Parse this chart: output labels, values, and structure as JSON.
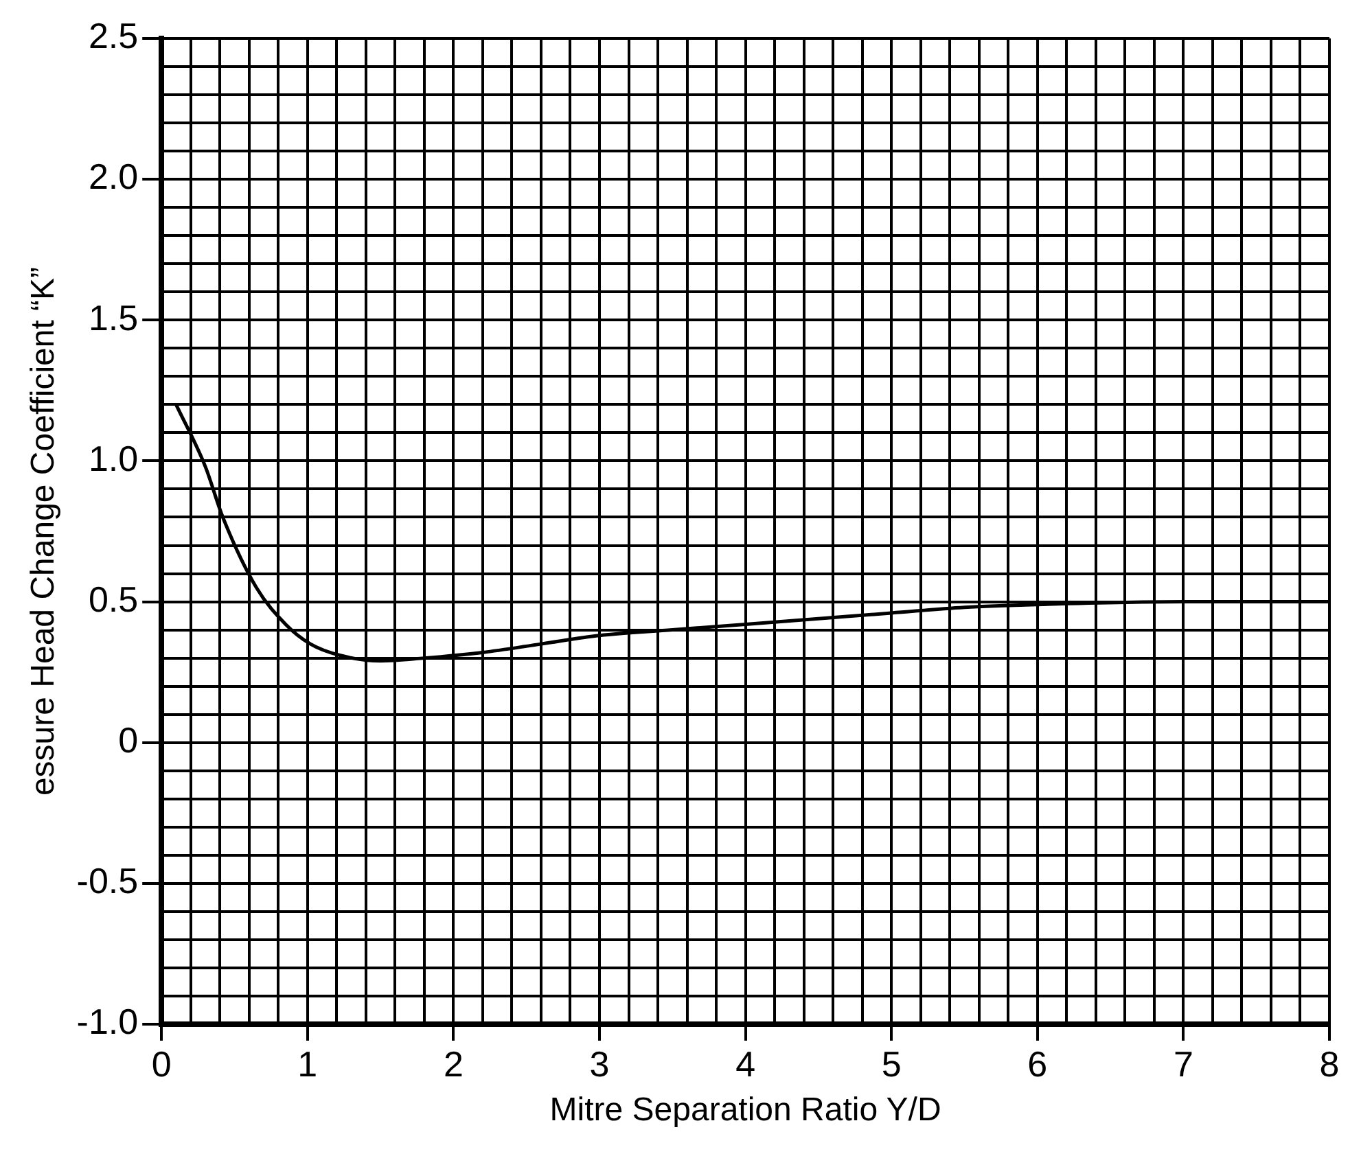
{
  "chart_data": {
    "type": "line",
    "xlabel": "Mitre Separation Ratio Y/D",
    "ylabel": "essure Head Change Coefficient “K”",
    "x": [
      0.1,
      0.3,
      0.42,
      0.65,
      0.85,
      1.02,
      1.22,
      1.5,
      1.8,
      2.2,
      2.6,
      3,
      3.5,
      4,
      4.5,
      5,
      5.5,
      6,
      7,
      8
    ],
    "series": [
      {
        "color": "#000000",
        "values": [
          1.2,
          0.98,
          0.8,
          0.55,
          0.42,
          0.35,
          0.31,
          0.29,
          0.3,
          0.32,
          0.35,
          0.38,
          0.4,
          0.42,
          0.44,
          0.46,
          0.48,
          0.49,
          0.5,
          0.5
        ]
      }
    ],
    "xlim": [
      0,
      8
    ],
    "ylim": [
      -1,
      2.5
    ],
    "xticks": [
      0,
      {
        "value": 0.2,
        "label": null
      },
      {
        "value": 0.4,
        "label": null
      },
      {
        "value": 0.6,
        "label": null
      },
      {
        "value": 0.8,
        "label": null
      },
      1,
      {
        "value": 1.2,
        "label": null
      },
      {
        "value": 1.4,
        "label": null
      },
      {
        "value": 1.6,
        "label": null
      },
      {
        "value": 1.8,
        "label": null
      },
      2,
      {
        "value": 2.2,
        "label": null
      },
      {
        "value": 2.4,
        "label": null
      },
      {
        "value": 2.6,
        "label": null
      },
      {
        "value": 2.8,
        "label": null
      },
      3,
      {
        "value": 3.2,
        "label": null
      },
      {
        "value": 3.4,
        "label": null
      },
      {
        "value": 3.6,
        "label": null
      },
      {
        "value": 3.8,
        "label": null
      },
      4,
      {
        "value": 4.2,
        "label": null
      },
      {
        "value": 4.4,
        "label": null
      },
      {
        "value": 4.6,
        "label": null
      },
      {
        "value": 4.8,
        "label": null
      },
      5,
      {
        "value": 5.2,
        "label": null
      },
      {
        "value": 5.4,
        "label": null
      },
      {
        "value": 5.6,
        "label": null
      },
      {
        "value": 5.8,
        "label": null
      },
      6,
      {
        "value": 6.2,
        "label": null
      },
      {
        "value": 6.4,
        "label": null
      },
      {
        "value": 6.6,
        "label": null
      },
      {
        "value": 6.8,
        "label": null
      },
      7,
      {
        "value": 7.2,
        "label": null
      },
      {
        "value": 7.4,
        "label": null
      },
      {
        "value": 7.6,
        "label": null
      },
      {
        "value": 7.8,
        "label": null
      },
      8
    ],
    "yticks": [
      {
        "value": -1,
        "label": "-1.0"
      },
      {
        "value": -0.9,
        "label": null
      },
      {
        "value": -0.8,
        "label": null
      },
      {
        "value": -0.7,
        "label": null
      },
      {
        "value": -0.6,
        "label": null
      },
      {
        "value": -0.5,
        "label": "-0.5"
      },
      {
        "value": -0.4,
        "label": null
      },
      {
        "value": -0.3,
        "label": null
      },
      {
        "value": -0.2,
        "label": null
      },
      {
        "value": -0.1,
        "label": null
      },
      0,
      {
        "value": 0.1,
        "label": null
      },
      {
        "value": 0.2,
        "label": null
      },
      {
        "value": 0.3,
        "label": null
      },
      {
        "value": 0.4,
        "label": null
      },
      0.5,
      {
        "value": 0.6,
        "label": null
      },
      {
        "value": 0.7,
        "label": null
      },
      {
        "value": 0.8,
        "label": null
      },
      {
        "value": 0.9,
        "label": null
      },
      {
        "value": 1,
        "label": "1.0"
      },
      {
        "value": 1.1,
        "label": null
      },
      {
        "value": 1.2,
        "label": null
      },
      {
        "value": 1.3,
        "label": null
      },
      {
        "value": 1.4,
        "label": null
      },
      1.5,
      {
        "value": 1.6,
        "label": null
      },
      {
        "value": 1.7,
        "label": null
      },
      {
        "value": 1.8,
        "label": null
      },
      {
        "value": 1.9,
        "label": null
      },
      {
        "value": 2,
        "label": "2.0"
      },
      {
        "value": 2.1,
        "label": null
      },
      {
        "value": 2.2,
        "label": null
      },
      {
        "value": 2.3,
        "label": null
      },
      {
        "value": 2.4,
        "label": null
      },
      2.5
    ],
    "grid": true,
    "legend": false,
    "marker": "none",
    "line_style": "solid"
  }
}
